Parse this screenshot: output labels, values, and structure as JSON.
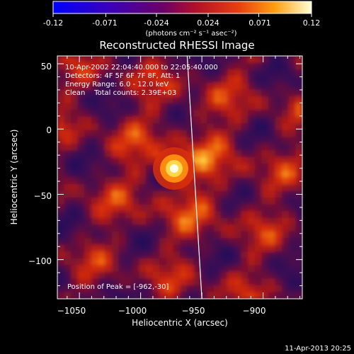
{
  "colorbar": {
    "tick_labels": [
      "-0.12",
      "-0.071",
      "-0.024",
      "0.024",
      "0.071",
      "0.12"
    ],
    "range": [
      -0.12,
      0.12
    ],
    "unit_label": "(photons cm⁻² s⁻¹ asec⁻²)"
  },
  "chart_data": {
    "type": "heatmap",
    "title": "Reconstructed RHESSI Image",
    "xlabel": "Heliocentric X (arcsec)",
    "ylabel": "Heliocentric Y (arcsec)",
    "xlim": [
      -1068,
      -868
    ],
    "ylim": [
      -130,
      56
    ],
    "x_ticks": [
      -1050,
      -1000,
      -950,
      -900
    ],
    "x_tick_labels": [
      "−1050",
      "−1000",
      "−950",
      "−900"
    ],
    "y_ticks": [
      50,
      0,
      -50,
      -100
    ],
    "y_tick_labels": [
      "50",
      "0",
      "−50",
      "−100"
    ],
    "annotations": [
      "10-Apr-2002 22:04:40.000 to 22:05:40.000",
      "Detectors: 4F 5F 6F 7F 8F, Att: 1",
      "Energy Range: 6.0 - 12.0 keV",
      "Clean    Total counts: 2.39E+03"
    ],
    "peak": {
      "x": -962,
      "y": -30,
      "label": "Position of Peak = [-962,-30]"
    },
    "limb_line": [
      {
        "x": -962,
        "y": 56
      },
      {
        "x": -950,
        "y": -130
      }
    ],
    "footer_timestamp": "11-Apr-2013 20:25"
  }
}
